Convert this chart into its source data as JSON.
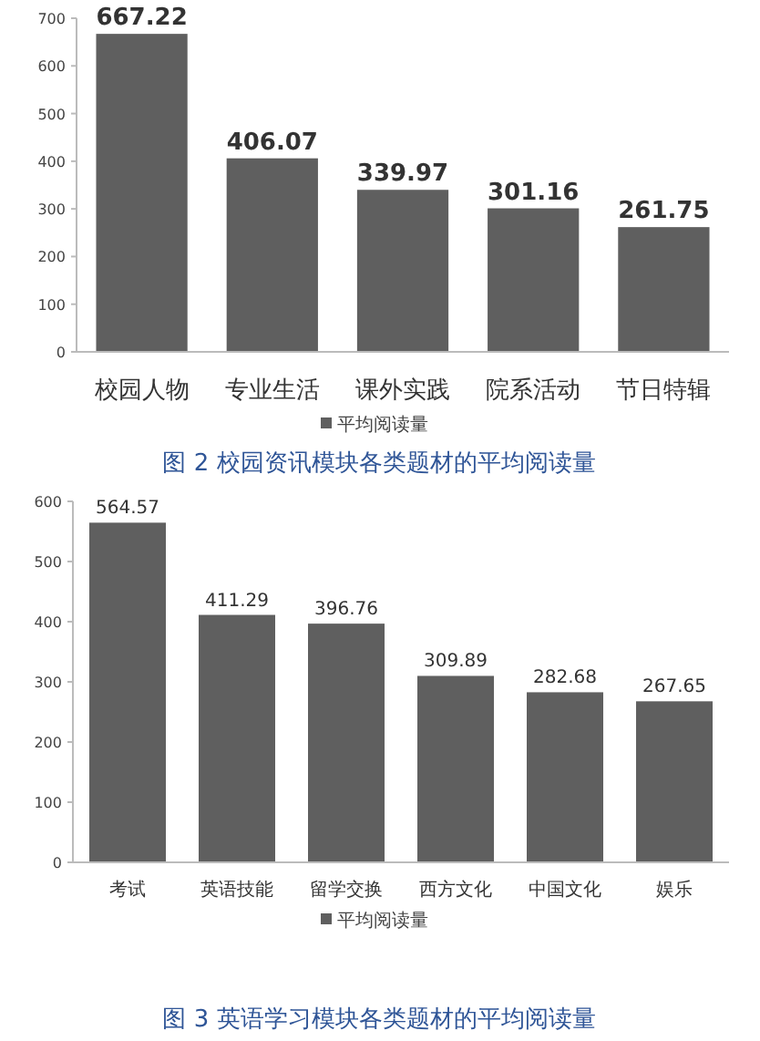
{
  "chart_data": [
    {
      "type": "bar",
      "title": "图 2 校园资讯模块各类题材的平均阅读量",
      "categories": [
        "校园人物",
        "专业生活",
        "课外实践",
        "院系活动",
        "节日特辑"
      ],
      "series": [
        {
          "name": "平均阅读量",
          "color": "#5f5f5f",
          "values": [
            667.22,
            406.07,
            339.97,
            301.16,
            261.75
          ]
        }
      ],
      "ylim": [
        0,
        700
      ],
      "yticks": [
        0,
        100,
        200,
        300,
        400,
        500,
        600,
        700
      ],
      "data_labels": true,
      "legend": "bottom"
    },
    {
      "type": "bar",
      "title": "图 3 英语学习模块各类题材的平均阅读量",
      "categories": [
        "考试",
        "英语技能",
        "留学交换",
        "西方文化",
        "中国文化",
        "娱乐"
      ],
      "series": [
        {
          "name": "平均阅读量",
          "color": "#5f5f5f",
          "values": [
            564.57,
            411.29,
            396.76,
            309.89,
            282.68,
            267.65
          ]
        }
      ],
      "ylim": [
        0,
        600
      ],
      "yticks": [
        0,
        100,
        200,
        300,
        400,
        500,
        600
      ],
      "data_labels": true,
      "legend": "bottom"
    }
  ]
}
